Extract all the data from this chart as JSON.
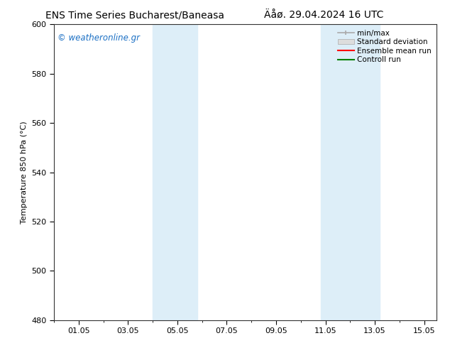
{
  "title_left": "ENS Time Series Bucharest/Baneasa",
  "title_right": "Äåø. 29.04.2024 16 UTC",
  "ylabel": "Temperature 850 hPa (°C)",
  "ylim": [
    480,
    600
  ],
  "yticks": [
    480,
    500,
    520,
    540,
    560,
    580,
    600
  ],
  "xtick_labels": [
    "01.05",
    "03.05",
    "05.05",
    "07.05",
    "09.05",
    "11.05",
    "13.05",
    "15.05"
  ],
  "xtick_positions": [
    1,
    3,
    5,
    7,
    9,
    11,
    13,
    15
  ],
  "xlim": [
    0,
    15.5
  ],
  "shaded_bands": [
    {
      "x_start": 4.0,
      "x_end": 5.8
    },
    {
      "x_start": 10.8,
      "x_end": 13.2
    }
  ],
  "shaded_color": "#ddeef8",
  "background_color": "#ffffff",
  "watermark_text": "© weatheronline.gr",
  "watermark_color": "#1a6fc4",
  "legend_labels": [
    "min/max",
    "Standard deviation",
    "Ensemble mean run",
    "Controll run"
  ],
  "legend_colors": [
    "#aaaaaa",
    "#cccccc",
    "#ff0000",
    "#008000"
  ],
  "tick_fontsize": 8,
  "label_fontsize": 8,
  "title_fontsize": 10,
  "minor_tick_positions": [
    0,
    1,
    2,
    3,
    4,
    5,
    6,
    7,
    8,
    9,
    10,
    11,
    12,
    13,
    14,
    15
  ]
}
